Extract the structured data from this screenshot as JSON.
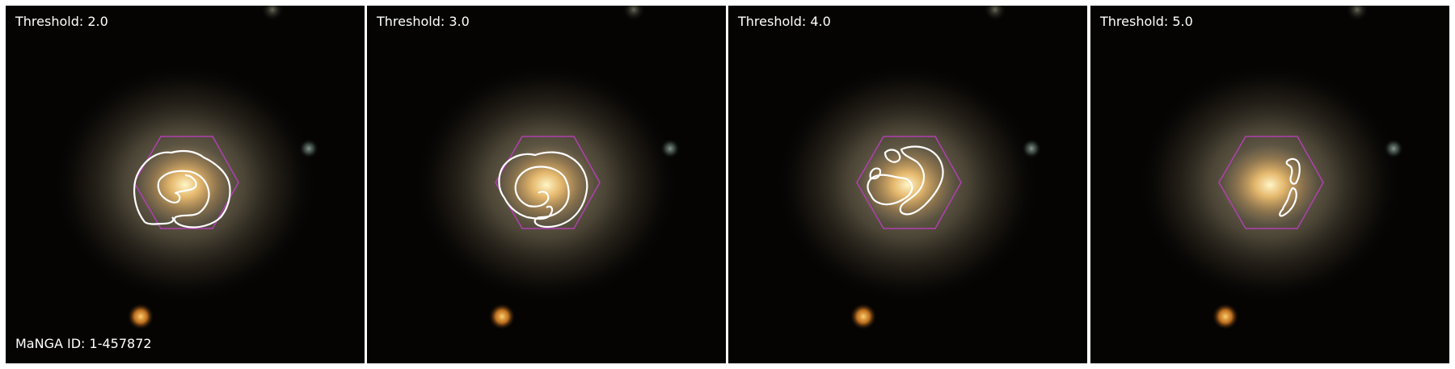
{
  "panels": [
    {
      "threshold_label": "Threshold: 2.0"
    },
    {
      "threshold_label": "Threshold: 3.0"
    },
    {
      "threshold_label": "Threshold: 4.0"
    },
    {
      "threshold_label": "Threshold: 5.0"
    }
  ],
  "manga_id_label": "MaNGA ID: 1-457872",
  "colors": {
    "hexagon": "#b040b0",
    "contour": "#ffffff",
    "background": "#050403",
    "galaxy_core": "#ffe9a0",
    "galaxy_halo": "#8a7d62"
  }
}
